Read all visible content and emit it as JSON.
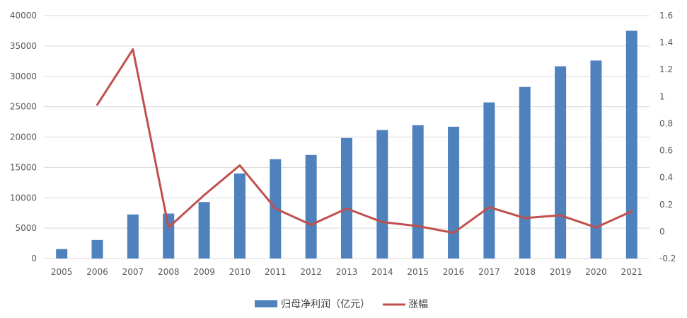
{
  "chart_data": {
    "type": "bar",
    "categories": [
      "2005",
      "2006",
      "2007",
      "2008",
      "2009",
      "2010",
      "2011",
      "2012",
      "2013",
      "2014",
      "2015",
      "2016",
      "2017",
      "2018",
      "2019",
      "2020",
      "2021"
    ],
    "series": [
      {
        "name": "归母净利润（亿元）",
        "type": "bar",
        "axis": "left",
        "color": "#4F81BD",
        "values": [
          1550,
          3050,
          7250,
          7400,
          9300,
          14000,
          16350,
          17050,
          19850,
          21150,
          21950,
          21700,
          25700,
          28250,
          31650,
          32600,
          37500
        ]
      },
      {
        "name": "涨幅",
        "type": "line",
        "axis": "right",
        "color": "#C0504D",
        "values": [
          null,
          0.94,
          1.35,
          0.03,
          0.27,
          0.49,
          0.17,
          0.05,
          0.17,
          0.07,
          0.04,
          -0.01,
          0.18,
          0.1,
          0.12,
          0.03,
          0.15
        ]
      }
    ],
    "y_left": {
      "range": [
        0,
        40000
      ],
      "ticks": [
        "0",
        "5000",
        "10000",
        "15000",
        "20000",
        "25000",
        "30000",
        "35000",
        "40000"
      ],
      "tick_values": [
        0,
        5000,
        10000,
        15000,
        20000,
        25000,
        30000,
        35000,
        40000
      ]
    },
    "y_right": {
      "range": [
        -0.2,
        1.6
      ],
      "ticks": [
        "-0.2",
        "0",
        "0.2",
        "0.4",
        "0.6",
        "0.8",
        "1",
        "1.2",
        "1.4",
        "1.6"
      ],
      "tick_values": [
        -0.2,
        0,
        0.2,
        0.4,
        0.6,
        0.8,
        1,
        1.2,
        1.4,
        1.6
      ]
    },
    "grid": true,
    "legend_position": "bottom-center",
    "gridline_color": "#D9D9D9"
  }
}
